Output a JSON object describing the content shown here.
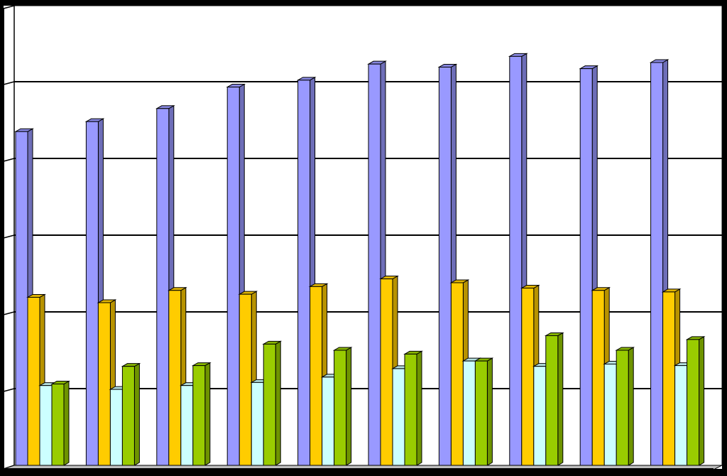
{
  "chart_data": {
    "type": "bar",
    "title": "",
    "xlabel": "",
    "ylabel": "",
    "categories": [
      "",
      "",
      "",
      "",
      "",
      "",
      "",
      "",
      "",
      ""
    ],
    "ylim": [
      0,
      6
    ],
    "grid": true,
    "legend": "none",
    "series": [
      {
        "color": "#9999ff",
        "values": [
          4.35,
          4.48,
          4.65,
          4.93,
          5.02,
          5.23,
          5.19,
          5.33,
          5.17,
          5.25
        ]
      },
      {
        "color": "#ffcc00",
        "values": [
          2.19,
          2.12,
          2.28,
          2.23,
          2.33,
          2.43,
          2.38,
          2.31,
          2.28,
          2.26
        ]
      },
      {
        "color": "#ccffff",
        "values": [
          1.04,
          0.99,
          1.04,
          1.08,
          1.15,
          1.26,
          1.36,
          1.29,
          1.32,
          1.3
        ]
      },
      {
        "color": "#99cc00",
        "values": [
          1.06,
          1.29,
          1.3,
          1.58,
          1.5,
          1.45,
          1.36,
          1.69,
          1.5,
          1.64
        ]
      }
    ]
  }
}
